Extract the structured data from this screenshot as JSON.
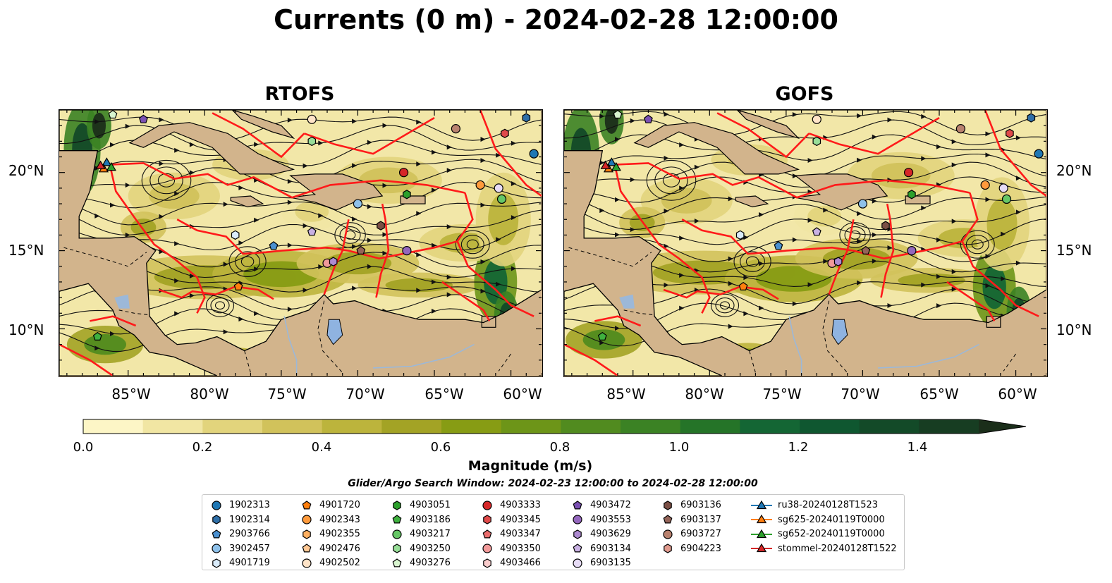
{
  "title": "Currents (0 m) - 2024-02-28 12:00:00",
  "panels": [
    {
      "title": "RTOFS"
    },
    {
      "title": "GOFS"
    }
  ],
  "lon_ticks": [
    "85°W",
    "80°W",
    "75°W",
    "70°W",
    "65°W",
    "60°W"
  ],
  "lat_ticks": [
    "20°N",
    "15°N",
    "10°N"
  ],
  "map_extent": {
    "lon": [
      -89.5,
      -58.0
    ],
    "lat": [
      7.0,
      24.0
    ]
  },
  "colorbar": {
    "label": "Magnitude (m/s)",
    "ticks": [
      "0.0",
      "0.2",
      "0.4",
      "0.6",
      "0.8",
      "1.0",
      "1.2",
      "1.4"
    ],
    "range": [
      0,
      1.5
    ],
    "extend": "max",
    "colors": [
      "#fdf6c6",
      "#f1e6a3",
      "#e2d47c",
      "#d1c25b",
      "#bcb43c",
      "#a3a325",
      "#879c14",
      "#6d9518",
      "#518b1f",
      "#3b8224",
      "#257428",
      "#146634",
      "#0f5730",
      "#134a28",
      "#173d22",
      "#1b2e1a"
    ]
  },
  "search_window": "Glider/Argo Search Window: 2024-02-23 12:00:00 to 2024-02-28 12:00:00",
  "legend": {
    "columns": [
      [
        {
          "label": "1902313",
          "marker": "circle",
          "color": "#1f77b4"
        },
        {
          "label": "1902314",
          "marker": "hexagon",
          "color": "#2f6fa8"
        },
        {
          "label": "2903766",
          "marker": "pentagon",
          "color": "#4a90d0"
        },
        {
          "label": "3902457",
          "marker": "circle",
          "color": "#8ec1ea"
        },
        {
          "label": "4901719",
          "marker": "hexagon",
          "color": "#d9ebfa"
        }
      ],
      [
        {
          "label": "4901720",
          "marker": "pentagon",
          "color": "#ff7f0e"
        },
        {
          "label": "4902343",
          "marker": "circle",
          "color": "#ff9a3c"
        },
        {
          "label": "4902355",
          "marker": "hexagon",
          "color": "#ffb061"
        },
        {
          "label": "4902476",
          "marker": "pentagon",
          "color": "#ffc894"
        },
        {
          "label": "4902502",
          "marker": "circle",
          "color": "#ffe4c8"
        }
      ],
      [
        {
          "label": "4903051",
          "marker": "hexagon",
          "color": "#2ca02c"
        },
        {
          "label": "4903186",
          "marker": "pentagon",
          "color": "#3fb13f"
        },
        {
          "label": "4903217",
          "marker": "circle",
          "color": "#66c766"
        },
        {
          "label": "4903250",
          "marker": "hexagon",
          "color": "#98de98"
        },
        {
          "label": "4903276",
          "marker": "pentagon",
          "color": "#d8f5cf"
        }
      ],
      [
        {
          "label": "4903333",
          "marker": "circle",
          "color": "#d62728"
        },
        {
          "label": "4903345",
          "marker": "hexagon",
          "color": "#e04a4a"
        },
        {
          "label": "4903347",
          "marker": "pentagon",
          "color": "#ea6d6d"
        },
        {
          "label": "4903350",
          "marker": "circle",
          "color": "#f29a9a"
        },
        {
          "label": "4903466",
          "marker": "hexagon",
          "color": "#f9cccc"
        }
      ],
      [
        {
          "label": "4903472",
          "marker": "pentagon",
          "color": "#7b50b3"
        },
        {
          "label": "4903553",
          "marker": "circle",
          "color": "#9467bd"
        },
        {
          "label": "4903629",
          "marker": "hexagon",
          "color": "#ad8ad0"
        },
        {
          "label": "6903134",
          "marker": "pentagon",
          "color": "#c9b1e3"
        },
        {
          "label": "6903135",
          "marker": "circle",
          "color": "#e6dbf5"
        }
      ],
      [
        {
          "label": "6903136",
          "marker": "hexagon",
          "color": "#7b4f45"
        },
        {
          "label": "6903137",
          "marker": "pentagon",
          "color": "#946459"
        },
        {
          "label": "6903727",
          "marker": "circle",
          "color": "#b9826f"
        },
        {
          "label": "6904223",
          "marker": "hexagon",
          "color": "#e09a8e"
        }
      ],
      [
        {
          "label": "ru38-20240128T1523",
          "marker": "triangle-line",
          "color": "#1f77b4"
        },
        {
          "label": "sg625-20240119T0000",
          "marker": "triangle-line",
          "color": "#ff7f0e"
        },
        {
          "label": "sg652-20240119T0000",
          "marker": "triangle-line",
          "color": "#2ca02c"
        },
        {
          "label": "stommel-20240128T1522",
          "marker": "triangle-line",
          "color": "#d62728"
        }
      ]
    ]
  },
  "floats": [
    {
      "id": "1902313",
      "lon": -58.5,
      "lat": 21.2
    },
    {
      "id": "1902314",
      "lon": -59.0,
      "lat": 23.5
    },
    {
      "id": "3902457",
      "lon": -70.0,
      "lat": 18.0
    },
    {
      "id": "4901719",
      "lon": -78.0,
      "lat": 16.0
    },
    {
      "id": "2903766",
      "lon": -75.5,
      "lat": 15.3
    },
    {
      "id": "4902502",
      "lon": -73.0,
      "lat": 23.4
    },
    {
      "id": "4903250",
      "lon": -73.0,
      "lat": 22.0
    },
    {
      "id": "4903051",
      "lon": -66.8,
      "lat": 18.6
    },
    {
      "id": "4903217",
      "lon": -60.6,
      "lat": 18.3
    },
    {
      "id": "4903333",
      "lon": -67.0,
      "lat": 20.0
    },
    {
      "id": "4903345",
      "lon": -60.4,
      "lat": 22.5
    },
    {
      "id": "4902343",
      "lon": -62.0,
      "lat": 19.2
    },
    {
      "id": "6903135",
      "lon": -60.8,
      "lat": 19.0
    },
    {
      "id": "6903136",
      "lon": -68.5,
      "lat": 16.6
    },
    {
      "id": "6903137",
      "lon": -69.8,
      "lat": 15.0
    },
    {
      "id": "4903553",
      "lon": -66.8,
      "lat": 15.0
    },
    {
      "id": "6903134",
      "lon": -73.0,
      "lat": 16.2
    },
    {
      "id": "4903350",
      "lon": -72.0,
      "lat": 14.2
    },
    {
      "id": "4903629",
      "lon": -71.6,
      "lat": 14.3
    },
    {
      "id": "6903727",
      "lon": -63.6,
      "lat": 22.8
    },
    {
      "id": "4901720",
      "lon": -77.8,
      "lat": 12.7
    },
    {
      "id": "4903186",
      "lon": -87.0,
      "lat": 9.5
    },
    {
      "id": "4903472",
      "lon": -84.0,
      "lat": 23.4
    },
    {
      "id": "4903276",
      "lon": -86.0,
      "lat": 23.7
    }
  ],
  "gliders": [
    {
      "id": "ru38-20240128T1523",
      "lon": -86.4,
      "lat": 20.6
    },
    {
      "id": "sg625-20240119T0000",
      "lon": -86.6,
      "lat": 20.2
    },
    {
      "id": "sg652-20240119T0000",
      "lon": -86.1,
      "lat": 20.3
    },
    {
      "id": "stommel-20240128T1522",
      "lon": -86.8,
      "lat": 20.4
    }
  ]
}
